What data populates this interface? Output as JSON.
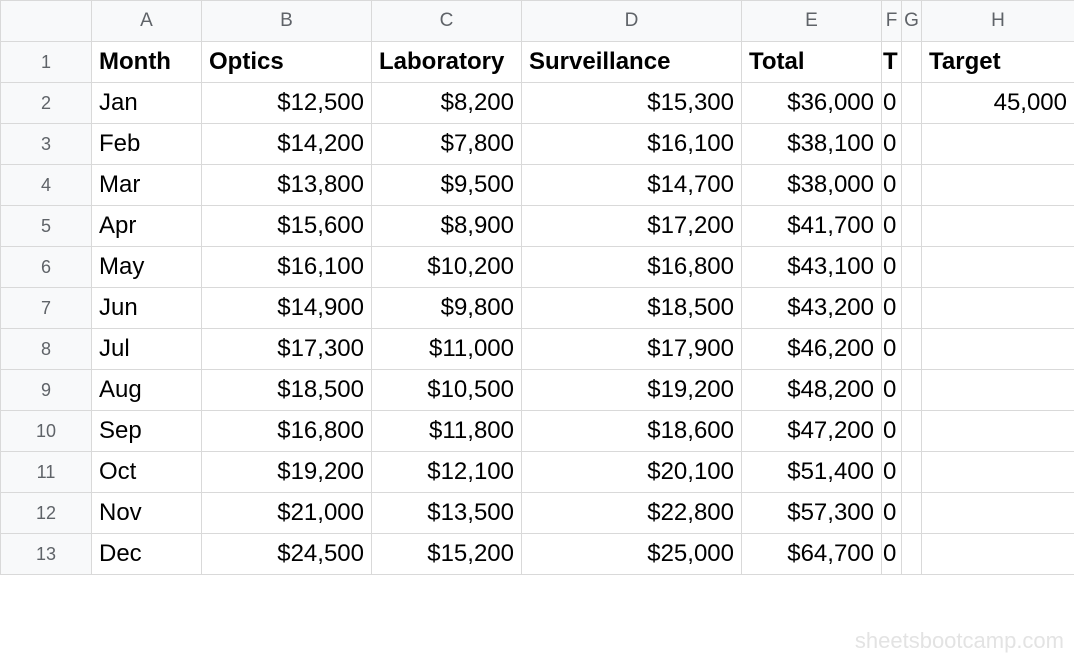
{
  "sheet": {
    "column_headers": [
      "A",
      "B",
      "C",
      "D",
      "E",
      "F",
      "G",
      "H"
    ],
    "header_row": {
      "row_number": "1",
      "cells": [
        "Month",
        "Optics",
        "Laboratory",
        "Surveillance",
        "Total",
        "T",
        "",
        "Target"
      ]
    },
    "rows": [
      {
        "row_number": "2",
        "cells": [
          "Jan",
          "$12,500",
          "$8,200",
          "$15,300",
          "$36,000",
          "0",
          "",
          "45,000"
        ]
      },
      {
        "row_number": "3",
        "cells": [
          "Feb",
          "$14,200",
          "$7,800",
          "$16,100",
          "$38,100",
          "0",
          "",
          ""
        ]
      },
      {
        "row_number": "4",
        "cells": [
          "Mar",
          "$13,800",
          "$9,500",
          "$14,700",
          "$38,000",
          "0",
          "",
          ""
        ]
      },
      {
        "row_number": "5",
        "cells": [
          "Apr",
          "$15,600",
          "$8,900",
          "$17,200",
          "$41,700",
          "0",
          "",
          ""
        ]
      },
      {
        "row_number": "6",
        "cells": [
          "May",
          "$16,100",
          "$10,200",
          "$16,800",
          "$43,100",
          "0",
          "",
          ""
        ]
      },
      {
        "row_number": "7",
        "cells": [
          "Jun",
          "$14,900",
          "$9,800",
          "$18,500",
          "$43,200",
          "0",
          "",
          ""
        ]
      },
      {
        "row_number": "8",
        "cells": [
          "Jul",
          "$17,300",
          "$11,000",
          "$17,900",
          "$46,200",
          "0",
          "",
          ""
        ]
      },
      {
        "row_number": "9",
        "cells": [
          "Aug",
          "$18,500",
          "$10,500",
          "$19,200",
          "$48,200",
          "0",
          "",
          ""
        ]
      },
      {
        "row_number": "10",
        "cells": [
          "Sep",
          "$16,800",
          "$11,800",
          "$18,600",
          "$47,200",
          "0",
          "",
          ""
        ]
      },
      {
        "row_number": "11",
        "cells": [
          "Oct",
          "$19,200",
          "$12,100",
          "$20,100",
          "$51,400",
          "0",
          "",
          ""
        ]
      },
      {
        "row_number": "12",
        "cells": [
          "Nov",
          "$21,000",
          "$13,500",
          "$22,800",
          "$57,300",
          "0",
          "",
          ""
        ]
      },
      {
        "row_number": "13",
        "cells": [
          "Dec",
          "$24,500",
          "$15,200",
          "$25,000",
          "$64,700",
          "0",
          "",
          ""
        ]
      }
    ]
  },
  "watermark": "sheetsbootcamp.com"
}
